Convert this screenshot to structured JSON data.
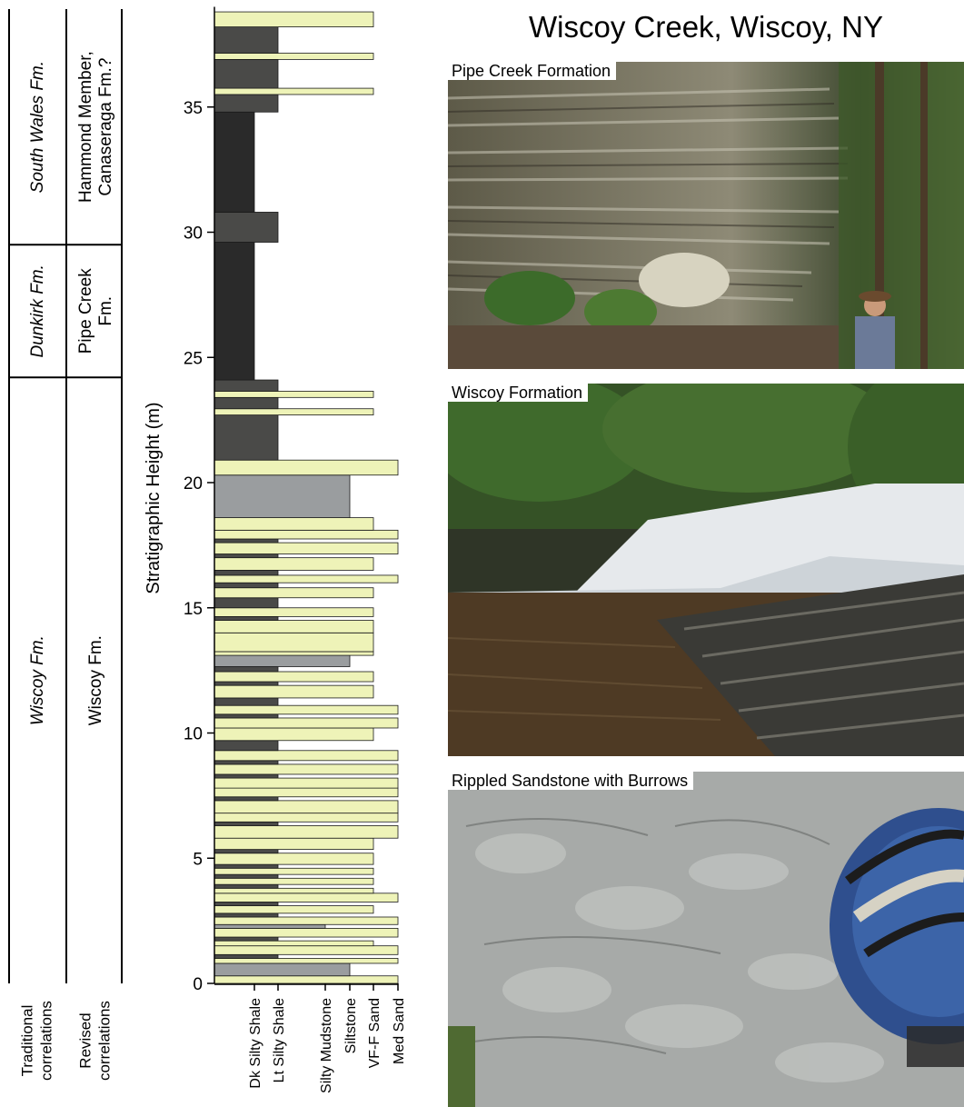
{
  "title": "Wiscoy Creek, Wiscoy, NY",
  "correlations": {
    "traditional_label": [
      "Traditional",
      "correlations"
    ],
    "revised_label": [
      "Revised",
      "correlations"
    ],
    "traditional_units": [
      {
        "name": "South Wales Fm.",
        "bottom": 29.5,
        "top": 39.0
      },
      {
        "name": "Dunkirk Fm.",
        "bottom": 24.2,
        "top": 29.5
      },
      {
        "name": "Wiscoy Fm.",
        "bottom": -1.2,
        "top": 24.2
      }
    ],
    "revised_units": [
      {
        "lines": [
          "Hammond Member,",
          "Canaseraga Fm.?"
        ],
        "bottom": 29.5,
        "top": 39.0
      },
      {
        "lines": [
          "Pipe Creek",
          "Fm."
        ],
        "bottom": 24.2,
        "top": 29.5
      },
      {
        "lines": [
          "Wiscoy Fm."
        ],
        "bottom": -1.2,
        "top": 24.2
      }
    ]
  },
  "chart_data": {
    "type": "stratigraphic-column",
    "ylabel": "Stratigraphic Height (m)",
    "ylim": [
      0,
      39
    ],
    "yticks": [
      0,
      5,
      10,
      15,
      20,
      25,
      30,
      35
    ],
    "grain_sizes": [
      "Dk Silty Shale",
      "Lt Silty Shale",
      "Silty Mudstone",
      "Siltstone",
      "VF-F Sand",
      "Med Sand"
    ],
    "lithology_colors": {
      "shale_dark": "#2a2a2a",
      "shale_light": "#4a4a48",
      "silt": "#9a9d9f",
      "sand": "#eef3b8"
    },
    "beds": [
      {
        "bottom": 0.0,
        "top": 0.3,
        "grain": 6,
        "lith": "sand"
      },
      {
        "bottom": 0.3,
        "top": 0.8,
        "grain": 4,
        "lith": "silt"
      },
      {
        "bottom": 0.8,
        "top": 1.0,
        "grain": 6,
        "lith": "sand"
      },
      {
        "bottom": 1.0,
        "top": 1.15,
        "grain": 2,
        "lith": "shale_light"
      },
      {
        "bottom": 1.15,
        "top": 1.5,
        "grain": 6,
        "lith": "sand"
      },
      {
        "bottom": 1.5,
        "top": 1.7,
        "grain": 5,
        "lith": "sand"
      },
      {
        "bottom": 1.7,
        "top": 1.85,
        "grain": 2,
        "lith": "shale_light"
      },
      {
        "bottom": 1.85,
        "top": 2.2,
        "grain": 6,
        "lith": "sand"
      },
      {
        "bottom": 2.2,
        "top": 2.35,
        "grain": 3,
        "lith": "silt"
      },
      {
        "bottom": 2.35,
        "top": 2.65,
        "grain": 6,
        "lith": "sand"
      },
      {
        "bottom": 2.65,
        "top": 2.8,
        "grain": 2,
        "lith": "shale_light"
      },
      {
        "bottom": 2.8,
        "top": 3.1,
        "grain": 5,
        "lith": "sand"
      },
      {
        "bottom": 3.1,
        "top": 3.25,
        "grain": 2,
        "lith": "shale_light"
      },
      {
        "bottom": 3.25,
        "top": 3.6,
        "grain": 6,
        "lith": "sand"
      },
      {
        "bottom": 3.6,
        "top": 3.8,
        "grain": 5,
        "lith": "sand"
      },
      {
        "bottom": 3.8,
        "top": 3.95,
        "grain": 2,
        "lith": "shale_light"
      },
      {
        "bottom": 3.95,
        "top": 4.2,
        "grain": 5,
        "lith": "sand"
      },
      {
        "bottom": 4.2,
        "top": 4.35,
        "grain": 2,
        "lith": "shale_light"
      },
      {
        "bottom": 4.35,
        "top": 4.6,
        "grain": 5,
        "lith": "sand"
      },
      {
        "bottom": 4.6,
        "top": 4.75,
        "grain": 2,
        "lith": "shale_light"
      },
      {
        "bottom": 4.75,
        "top": 5.2,
        "grain": 5,
        "lith": "sand"
      },
      {
        "bottom": 5.2,
        "top": 5.35,
        "grain": 2,
        "lith": "shale_light"
      },
      {
        "bottom": 5.35,
        "top": 5.8,
        "grain": 5,
        "lith": "sand"
      },
      {
        "bottom": 5.8,
        "top": 6.3,
        "grain": 6,
        "lith": "sand"
      },
      {
        "bottom": 6.3,
        "top": 6.45,
        "grain": 2,
        "lith": "shale_light"
      },
      {
        "bottom": 6.45,
        "top": 6.8,
        "grain": 6,
        "lith": "sand"
      },
      {
        "bottom": 6.8,
        "top": 7.3,
        "grain": 6,
        "lith": "sand"
      },
      {
        "bottom": 7.3,
        "top": 7.45,
        "grain": 2,
        "lith": "shale_light"
      },
      {
        "bottom": 7.45,
        "top": 7.8,
        "grain": 6,
        "lith": "sand"
      },
      {
        "bottom": 7.8,
        "top": 8.2,
        "grain": 6,
        "lith": "sand"
      },
      {
        "bottom": 8.2,
        "top": 8.35,
        "grain": 2,
        "lith": "shale_light"
      },
      {
        "bottom": 8.35,
        "top": 8.75,
        "grain": 6,
        "lith": "sand"
      },
      {
        "bottom": 8.75,
        "top": 8.9,
        "grain": 2,
        "lith": "shale_light"
      },
      {
        "bottom": 8.9,
        "top": 9.3,
        "grain": 6,
        "lith": "sand"
      },
      {
        "bottom": 9.3,
        "top": 9.7,
        "grain": 2,
        "lith": "shale_light"
      },
      {
        "bottom": 9.7,
        "top": 10.2,
        "grain": 5,
        "lith": "sand"
      },
      {
        "bottom": 10.2,
        "top": 10.6,
        "grain": 6,
        "lith": "sand"
      },
      {
        "bottom": 10.6,
        "top": 10.75,
        "grain": 2,
        "lith": "shale_light"
      },
      {
        "bottom": 10.75,
        "top": 11.1,
        "grain": 6,
        "lith": "sand"
      },
      {
        "bottom": 11.1,
        "top": 11.4,
        "grain": 2,
        "lith": "shale_light"
      },
      {
        "bottom": 11.4,
        "top": 11.9,
        "grain": 5,
        "lith": "sand"
      },
      {
        "bottom": 11.9,
        "top": 12.05,
        "grain": 2,
        "lith": "shale_light"
      },
      {
        "bottom": 12.05,
        "top": 12.45,
        "grain": 5,
        "lith": "sand"
      },
      {
        "bottom": 12.45,
        "top": 12.65,
        "grain": 2,
        "lith": "shale_light"
      },
      {
        "bottom": 12.65,
        "top": 13.1,
        "grain": 4,
        "lith": "silt"
      },
      {
        "bottom": 13.1,
        "top": 13.25,
        "grain": 5,
        "lith": "sand"
      },
      {
        "bottom": 13.25,
        "top": 14.0,
        "grain": 5,
        "lith": "sand"
      },
      {
        "bottom": 14.0,
        "top": 14.5,
        "grain": 5,
        "lith": "sand"
      },
      {
        "bottom": 14.5,
        "top": 14.65,
        "grain": 2,
        "lith": "shale_light"
      },
      {
        "bottom": 14.65,
        "top": 15.0,
        "grain": 5,
        "lith": "sand"
      },
      {
        "bottom": 15.0,
        "top": 15.4,
        "grain": 2,
        "lith": "shale_light"
      },
      {
        "bottom": 15.4,
        "top": 15.8,
        "grain": 5,
        "lith": "sand"
      },
      {
        "bottom": 15.8,
        "top": 16.0,
        "grain": 2,
        "lith": "shale_light"
      },
      {
        "bottom": 16.0,
        "top": 16.3,
        "grain": 6,
        "lith": "sand"
      },
      {
        "bottom": 16.3,
        "top": 16.5,
        "grain": 2,
        "lith": "shale_light"
      },
      {
        "bottom": 16.5,
        "top": 17.0,
        "grain": 5,
        "lith": "sand"
      },
      {
        "bottom": 17.0,
        "top": 17.15,
        "grain": 2,
        "lith": "shale_light"
      },
      {
        "bottom": 17.15,
        "top": 17.6,
        "grain": 6,
        "lith": "sand"
      },
      {
        "bottom": 17.6,
        "top": 17.75,
        "grain": 2,
        "lith": "shale_light"
      },
      {
        "bottom": 17.75,
        "top": 18.1,
        "grain": 6,
        "lith": "sand"
      },
      {
        "bottom": 18.1,
        "top": 18.6,
        "grain": 5,
        "lith": "sand"
      },
      {
        "bottom": 18.6,
        "top": 20.3,
        "grain": 4,
        "lith": "silt"
      },
      {
        "bottom": 20.3,
        "top": 20.9,
        "grain": 6,
        "lith": "sand"
      },
      {
        "bottom": 20.9,
        "top": 22.7,
        "grain": 2,
        "lith": "shale_light"
      },
      {
        "bottom": 22.7,
        "top": 22.95,
        "grain": 5,
        "lith": "sand"
      },
      {
        "bottom": 22.95,
        "top": 23.4,
        "grain": 2,
        "lith": "shale_light"
      },
      {
        "bottom": 23.4,
        "top": 23.65,
        "grain": 5,
        "lith": "sand"
      },
      {
        "bottom": 23.65,
        "top": 24.1,
        "grain": 2,
        "lith": "shale_light"
      },
      {
        "bottom": 24.1,
        "top": 29.6,
        "grain": 1,
        "lith": "shale_dark"
      },
      {
        "bottom": 29.6,
        "top": 30.8,
        "grain": 2,
        "lith": "shale_light"
      },
      {
        "bottom": 30.8,
        "top": 34.8,
        "grain": 1,
        "lith": "shale_dark"
      },
      {
        "bottom": 34.8,
        "top": 35.5,
        "grain": 2,
        "lith": "shale_light"
      },
      {
        "bottom": 35.5,
        "top": 35.75,
        "grain": 5,
        "lith": "sand"
      },
      {
        "bottom": 35.75,
        "top": 36.9,
        "grain": 2,
        "lith": "shale_light"
      },
      {
        "bottom": 36.9,
        "top": 37.15,
        "grain": 5,
        "lith": "sand"
      },
      {
        "bottom": 37.15,
        "top": 38.2,
        "grain": 2,
        "lith": "shale_light"
      },
      {
        "bottom": 38.2,
        "top": 38.8,
        "grain": 5,
        "lith": "sand"
      }
    ]
  },
  "photos": [
    {
      "label": "Pipe Creek Formation"
    },
    {
      "label": "Wiscoy Formation"
    },
    {
      "label": "Rippled Sandstone with Burrows"
    }
  ]
}
